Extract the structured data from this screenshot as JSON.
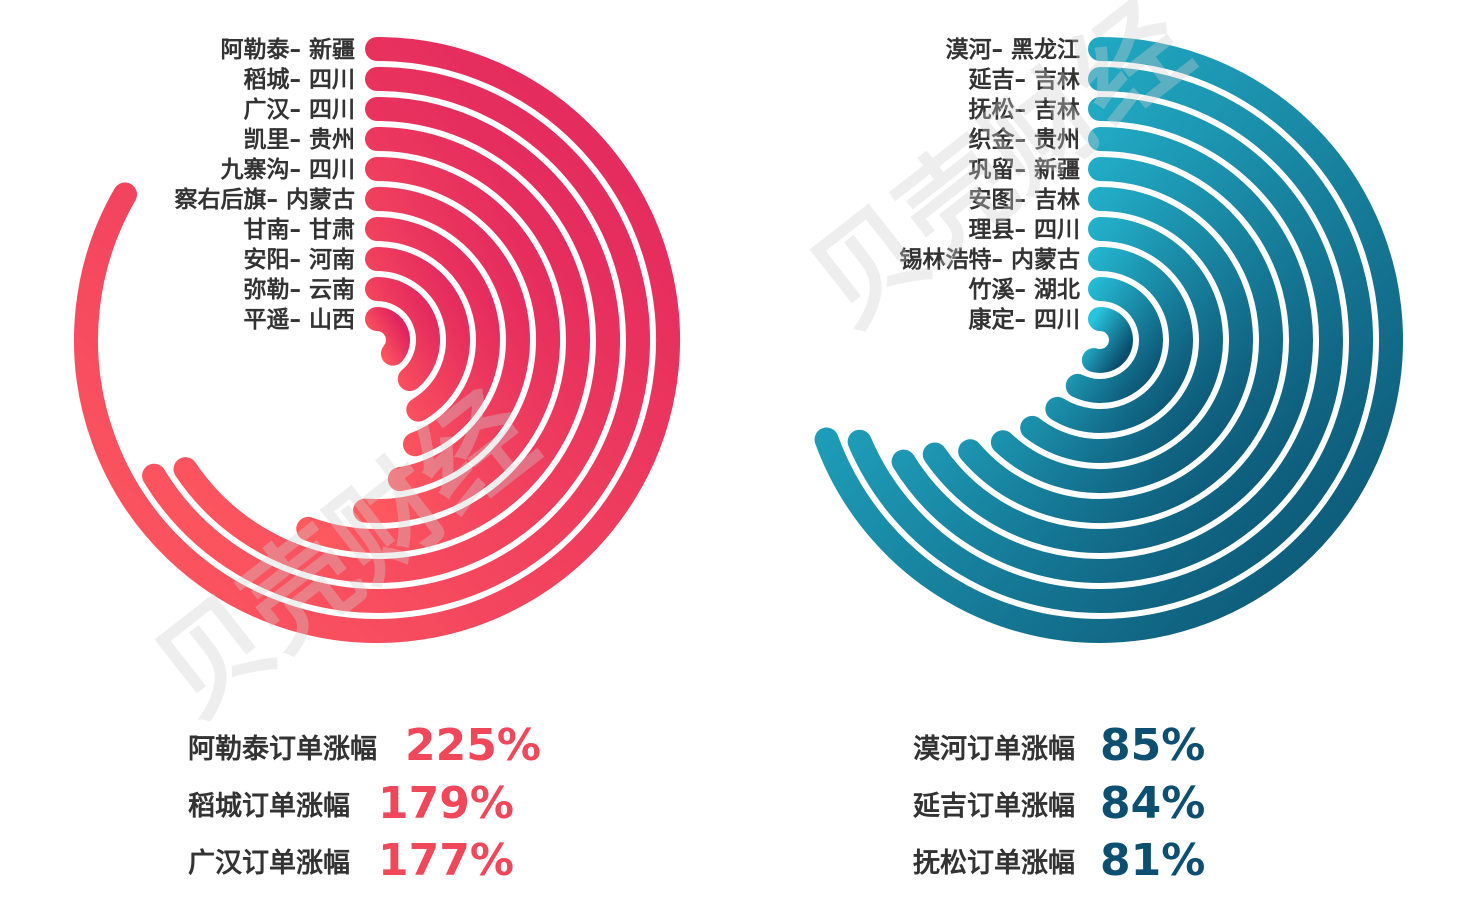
{
  "watermark": "贝壳财经",
  "chart_data": [
    {
      "type": "radial-bar",
      "unit": "%",
      "color_gradient": [
        "#e0245e",
        "#ff5a5f"
      ],
      "highlight_color": "#f0485a",
      "categories": [
        "阿勒泰– 新疆",
        "稻城– 四川",
        "广汉– 四川",
        "凯里– 贵州",
        "九寨沟– 四川",
        "察右后旗– 内蒙古",
        "甘南– 甘肃",
        "安阳– 河南",
        "弥勒– 云南",
        "平遥– 山西"
      ],
      "values": [
        225,
        179,
        177,
        150,
        138,
        128,
        120,
        112,
        105,
        98
      ],
      "highlights": [
        {
          "label": "阿勒泰订单涨幅",
          "value": "225%"
        },
        {
          "label": "稻城订单涨幅",
          "value": "179%"
        },
        {
          "label": "广汉订单涨幅",
          "value": "177%"
        }
      ]
    },
    {
      "type": "radial-bar",
      "unit": "%",
      "color_gradient": [
        "#0a4d6c",
        "#28c3dc"
      ],
      "highlight_color": "#0d4f70",
      "categories": [
        "漠河– 黑龙江",
        "延吉– 吉林",
        "抚松– 吉林",
        "织金– 贵州",
        "巩留– 新疆",
        "安图– 吉林",
        "理县– 四川",
        "锡林浩特– 内蒙古",
        "竹溪– 湖北",
        "康定– 四川"
      ],
      "values": [
        85,
        84,
        81,
        80,
        78,
        76,
        74,
        72,
        70,
        67
      ],
      "highlights": [
        {
          "label": "漠河订单涨幅",
          "value": "85%"
        },
        {
          "label": "延吉订单涨幅",
          "value": "84%"
        },
        {
          "label": "抚松订单涨幅",
          "value": "81%"
        }
      ]
    }
  ]
}
